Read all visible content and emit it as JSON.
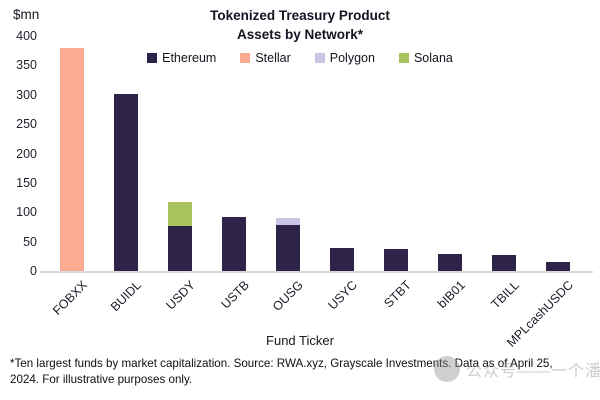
{
  "title_line1": "Tokenized Treasury Product",
  "title_line2": "Assets by Network*",
  "y_axis_unit": "$mn",
  "x_axis_title": "Fund Ticker",
  "footnote": "*Ten largest funds by market capitalization. Source: RWA.xyz, Grayscale Investments. Data as of April 25, 2024. For illustrative purposes only.",
  "watermark": {
    "text": "公众号——一个潘妮"
  },
  "legend": [
    {
      "label": "Ethereum",
      "color": "#2e2449"
    },
    {
      "label": "Stellar",
      "color": "#fcab93"
    },
    {
      "label": "Polygon",
      "color": "#c9c6e6"
    },
    {
      "label": "Solana",
      "color": "#a9c45f"
    }
  ],
  "chart_data": {
    "type": "bar",
    "stacked": true,
    "title": "Tokenized Treasury Product Assets by Network*",
    "xlabel": "Fund Ticker",
    "ylabel": "$mn",
    "ylim": [
      0,
      400
    ],
    "yticks": [
      0,
      50,
      100,
      150,
      200,
      250,
      300,
      350,
      400
    ],
    "grid": false,
    "legend_position": "top",
    "categories": [
      "FOBXX",
      "BUIDL",
      "USDY",
      "USTB",
      "OUSG",
      "USYC",
      "STBT",
      "bIB01",
      "TBILL",
      "MPLcashUSDC"
    ],
    "series": [
      {
        "name": "Ethereum",
        "color": "#2e2449",
        "values": [
          0,
          302,
          77,
          92,
          78,
          40,
          37,
          29,
          27,
          16
        ]
      },
      {
        "name": "Stellar",
        "color": "#fcab93",
        "values": [
          380,
          0,
          0,
          0,
          0,
          0,
          0,
          0,
          0,
          0
        ]
      },
      {
        "name": "Polygon",
        "color": "#c9c6e6",
        "values": [
          0,
          0,
          0,
          0,
          12,
          0,
          0,
          0,
          0,
          0
        ]
      },
      {
        "name": "Solana",
        "color": "#a9c45f",
        "values": [
          0,
          0,
          40,
          0,
          0,
          0,
          0,
          0,
          0,
          0
        ]
      }
    ],
    "totals": {
      "FOBXX": 380,
      "BUIDL": 302,
      "USDY": 117,
      "USTB": 92,
      "OUSG": 90,
      "USYC": 40,
      "STBT": 37,
      "bIB01": 29,
      "TBILL": 27,
      "MPLcashUSDC": 16
    }
  }
}
